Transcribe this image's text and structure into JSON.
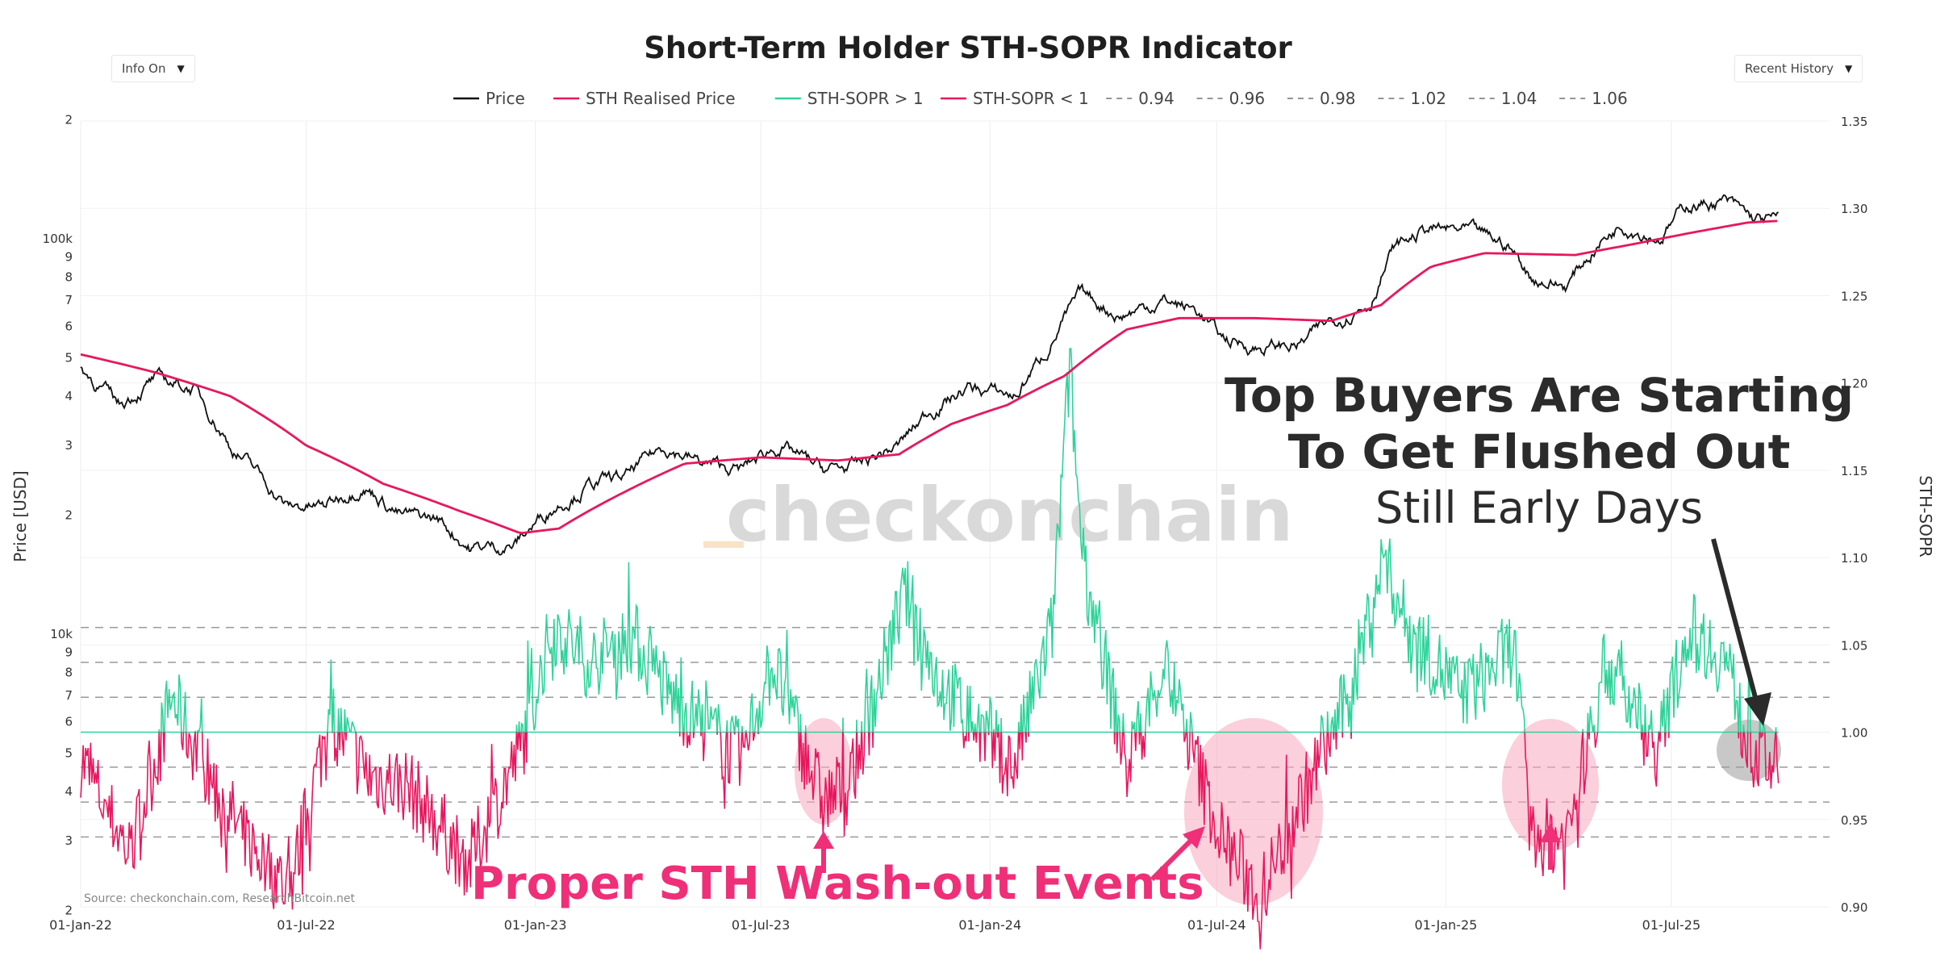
{
  "chart_data": {
    "type": "line",
    "title": "Short-Term Holder STH-SOPR Indicator",
    "left_axis": {
      "label": "Price [USD]",
      "scale": "log",
      "tick_labels": [
        "2",
        "100k",
        "9",
        "8",
        "7",
        "6",
        "5",
        "4",
        "3",
        "2",
        "10k",
        "9",
        "8",
        "7",
        "6",
        "5",
        "4",
        "3",
        "2"
      ]
    },
    "right_axis": {
      "label": "STH-SOPR",
      "range": [
        0.9,
        1.35
      ],
      "tick_labels": [
        "1.35",
        "1.30",
        "1.25",
        "1.20",
        "1.15",
        "1.10",
        "1.05",
        "1.00",
        "0.95",
        "0.90"
      ]
    },
    "x_tick_labels": [
      "01-Jan-22",
      "01-Jul-22",
      "01-Jan-23",
      "01-Jul-23",
      "01-Jan-24",
      "01-Jul-24",
      "01-Jan-25",
      "01-Jul-25"
    ],
    "legend": [
      {
        "name": "Price",
        "color": "#111111",
        "style": "solid"
      },
      {
        "name": "STH Realised Price",
        "color": "#e8175d",
        "style": "solid"
      },
      {
        "name": "STH-SOPR > 1",
        "color": "#2ed39a",
        "style": "solid"
      },
      {
        "name": "STH-SOPR < 1",
        "color": "#e8175d",
        "style": "solid"
      },
      {
        "name": "0.94",
        "color": "#888888",
        "style": "dashed"
      },
      {
        "name": "0.96",
        "color": "#888888",
        "style": "dashed"
      },
      {
        "name": "0.98",
        "color": "#888888",
        "style": "dashed"
      },
      {
        "name": "1.02",
        "color": "#888888",
        "style": "dashed"
      },
      {
        "name": "1.04",
        "color": "#888888",
        "style": "dashed"
      },
      {
        "name": "1.06",
        "color": "#888888",
        "style": "dashed"
      }
    ],
    "reference_levels": [
      0.94,
      0.96,
      0.98,
      1.02,
      1.04,
      1.06
    ],
    "series": [
      {
        "name": "Price",
        "axis": "left",
        "points": [
          [
            "2022-01-01",
            47000
          ],
          [
            "2022-02-01",
            38000
          ],
          [
            "2022-03-01",
            44000
          ],
          [
            "2022-04-01",
            42000
          ],
          [
            "2022-05-01",
            30000
          ],
          [
            "2022-06-15",
            21000
          ],
          [
            "2022-07-15",
            21000
          ],
          [
            "2022-08-15",
            24000
          ],
          [
            "2022-09-15",
            20000
          ],
          [
            "2022-10-15",
            19500
          ],
          [
            "2022-11-10",
            16500
          ],
          [
            "2022-12-15",
            16800
          ],
          [
            "2023-01-15",
            21000
          ],
          [
            "2023-02-15",
            24000
          ],
          [
            "2023-03-15",
            25000
          ],
          [
            "2023-04-15",
            30000
          ],
          [
            "2023-05-15",
            27000
          ],
          [
            "2023-06-15",
            26000
          ],
          [
            "2023-07-15",
            30000
          ],
          [
            "2023-08-20",
            26000
          ],
          [
            "2023-09-15",
            26500
          ],
          [
            "2023-10-20",
            30000
          ],
          [
            "2023-11-15",
            37000
          ],
          [
            "2023-12-15",
            42000
          ],
          [
            "2024-01-22",
            40000
          ],
          [
            "2024-02-15",
            52000
          ],
          [
            "2024-03-14",
            72000
          ],
          [
            "2024-04-15",
            64000
          ],
          [
            "2024-05-20",
            70000
          ],
          [
            "2024-06-15",
            66000
          ],
          [
            "2024-07-05",
            56000
          ],
          [
            "2024-08-05",
            53000
          ],
          [
            "2024-09-06",
            54000
          ],
          [
            "2024-10-01",
            62000
          ],
          [
            "2024-11-01",
            69000
          ],
          [
            "2024-11-20",
            94000
          ],
          [
            "2024-12-17",
            106000
          ],
          [
            "2025-01-20",
            104000
          ],
          [
            "2025-02-20",
            96000
          ],
          [
            "2025-03-10",
            80000
          ],
          [
            "2025-04-08",
            76000
          ],
          [
            "2025-05-01",
            95000
          ],
          [
            "2025-05-22",
            110000
          ],
          [
            "2025-06-22",
            101000
          ],
          [
            "2025-07-14",
            122000
          ],
          [
            "2025-08-14",
            124000
          ],
          [
            "2025-09-05",
            112000
          ],
          [
            "2025-09-25",
            111000
          ]
        ]
      },
      {
        "name": "STH Realised Price",
        "axis": "left",
        "points": [
          [
            "2022-01-01",
            51000
          ],
          [
            "2022-03-01",
            46000
          ],
          [
            "2022-05-01",
            40000
          ],
          [
            "2022-07-01",
            30000
          ],
          [
            "2022-09-01",
            24000
          ],
          [
            "2022-11-01",
            20500
          ],
          [
            "2022-12-20",
            18000
          ],
          [
            "2023-01-20",
            18500
          ],
          [
            "2023-03-15",
            23000
          ],
          [
            "2023-05-01",
            27000
          ],
          [
            "2023-07-01",
            28000
          ],
          [
            "2023-09-01",
            27500
          ],
          [
            "2023-10-20",
            28500
          ],
          [
            "2023-12-01",
            34000
          ],
          [
            "2024-01-15",
            38000
          ],
          [
            "2024-03-01",
            45000
          ],
          [
            "2024-04-20",
            59000
          ],
          [
            "2024-06-01",
            63000
          ],
          [
            "2024-08-01",
            63000
          ],
          [
            "2024-10-01",
            62000
          ],
          [
            "2024-11-10",
            68000
          ],
          [
            "2024-12-20",
            85000
          ],
          [
            "2025-02-01",
            92000
          ],
          [
            "2025-04-15",
            91000
          ],
          [
            "2025-06-01",
            97000
          ],
          [
            "2025-07-20",
            104000
          ],
          [
            "2025-09-01",
            110000
          ],
          [
            "2025-09-25",
            111000
          ]
        ]
      },
      {
        "name": "STH-SOPR",
        "axis": "right",
        "points": [
          [
            "2022-01-01",
            0.985
          ],
          [
            "2022-02-10",
            0.93
          ],
          [
            "2022-03-15",
            1.02
          ],
          [
            "2022-04-10",
            0.98
          ],
          [
            "2022-05-12",
            0.94
          ],
          [
            "2022-06-18",
            0.91
          ],
          [
            "2022-07-20",
            1.01
          ],
          [
            "2022-08-20",
            0.975
          ],
          [
            "2022-09-20",
            0.97
          ],
          [
            "2022-11-09",
            0.925
          ],
          [
            "2022-12-20",
            0.99
          ],
          [
            "2023-01-15",
            1.06
          ],
          [
            "2023-02-15",
            1.04
          ],
          [
            "2023-03-20",
            1.055
          ],
          [
            "2023-04-20",
            1.02
          ],
          [
            "2023-06-15",
            0.985
          ],
          [
            "2023-07-10",
            1.04
          ],
          [
            "2023-08-20",
            0.96
          ],
          [
            "2023-09-10",
            0.97
          ],
          [
            "2023-10-25",
            1.08
          ],
          [
            "2023-11-20",
            1.03
          ],
          [
            "2024-01-20",
            0.98
          ],
          [
            "2024-02-20",
            1.06
          ],
          [
            "2024-03-05",
            1.21
          ],
          [
            "2024-03-15",
            1.1
          ],
          [
            "2024-04-20",
            0.98
          ],
          [
            "2024-05-20",
            1.04
          ],
          [
            "2024-06-20",
            0.97
          ],
          [
            "2024-07-05",
            0.94
          ],
          [
            "2024-08-05",
            0.905
          ],
          [
            "2024-09-06",
            0.96
          ],
          [
            "2024-10-15",
            1.02
          ],
          [
            "2024-11-12",
            1.1
          ],
          [
            "2024-12-01",
            1.06
          ],
          [
            "2025-01-15",
            1.02
          ],
          [
            "2025-02-25",
            1.05
          ],
          [
            "2025-03-10",
            0.94
          ],
          [
            "2025-04-08",
            0.94
          ],
          [
            "2025-05-10",
            1.04
          ],
          [
            "2025-06-20",
            0.99
          ],
          [
            "2025-07-15",
            1.06
          ],
          [
            "2025-08-15",
            1.04
          ],
          [
            "2025-09-01",
            0.99
          ],
          [
            "2025-09-25",
            0.98
          ]
        ]
      }
    ]
  },
  "controls": {
    "info_label": "Info On",
    "range_label": "Recent History"
  },
  "annotations": {
    "top_buyers_line1": "Top Buyers Are Starting",
    "top_buyers_line2": "To Get Flushed Out",
    "still_early": "Still Early Days",
    "washout": "Proper STH Wash-out Events"
  },
  "watermark": "checkonchain",
  "source": "Source: checkonchain.com, ResearchBitcoin.net"
}
